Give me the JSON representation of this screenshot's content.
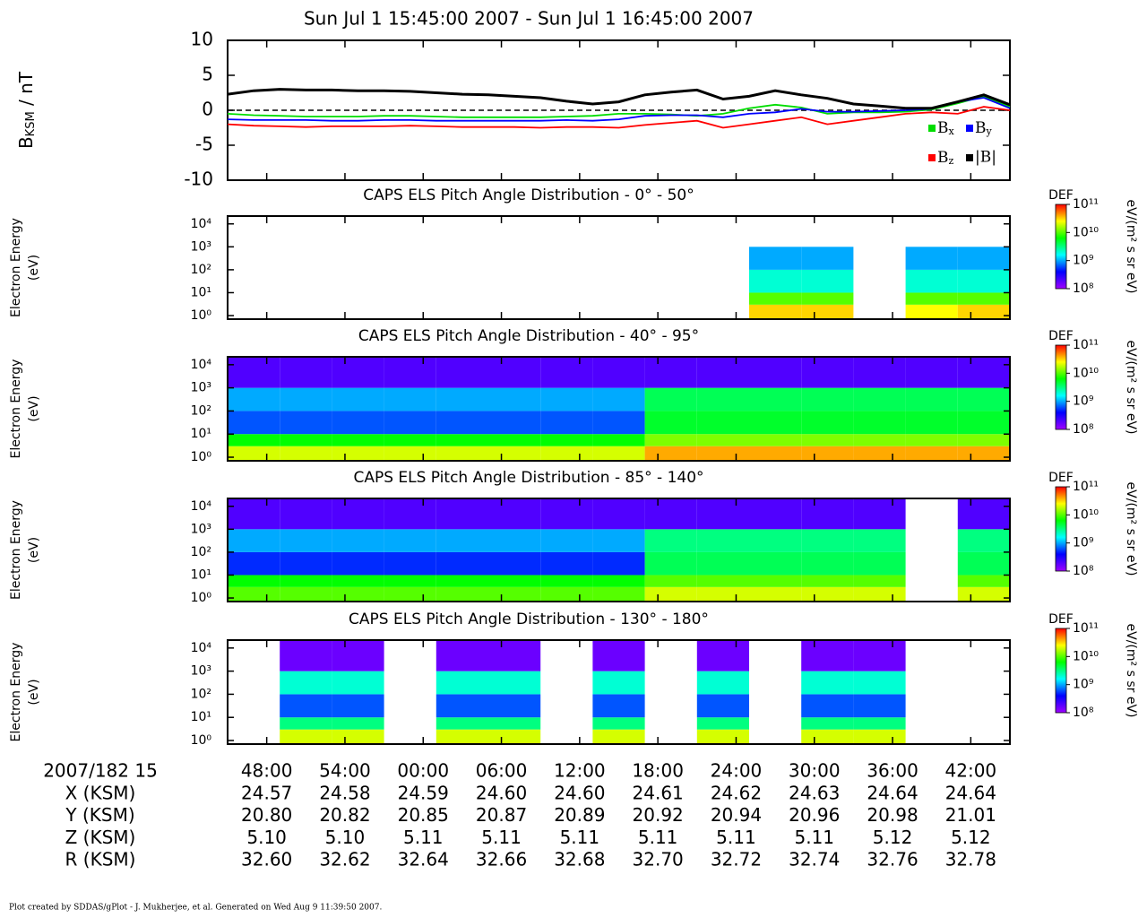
{
  "title": "Sun Jul 1 15:45:00 2007 - Sun Jul 1 16:45:00 2007",
  "footer": "Plot created by SDDAS/gPlot - J. Mukherjee, et al.  Generated on Wed Aug 9 11:39:50 2007.",
  "time_axis": {
    "xlim": [
      45,
      105
    ],
    "xticks": [
      {
        "value": 48,
        "label": "48:00"
      },
      {
        "value": 54,
        "label": "54:00"
      },
      {
        "value": 60,
        "label": "00:00"
      },
      {
        "value": 66,
        "label": "06:00"
      },
      {
        "value": 72,
        "label": "12:00"
      },
      {
        "value": 78,
        "label": "18:00"
      },
      {
        "value": 84,
        "label": "24:00"
      },
      {
        "value": 90,
        "label": "30:00"
      },
      {
        "value": 96,
        "label": "36:00"
      },
      {
        "value": 102,
        "label": "42:00"
      }
    ]
  },
  "ephemeris": {
    "time_label": "2007/182 15",
    "rows": [
      {
        "label": "X (KSM)",
        "values": [
          "24.57",
          "24.58",
          "24.59",
          "24.60",
          "24.60",
          "24.61",
          "24.62",
          "24.63",
          "24.64",
          "24.64"
        ]
      },
      {
        "label": "Y (KSM)",
        "values": [
          "20.80",
          "20.82",
          "20.85",
          "20.87",
          "20.89",
          "20.92",
          "20.94",
          "20.96",
          "20.98",
          "21.01"
        ]
      },
      {
        "label": "Z (KSM)",
        "values": [
          "5.10",
          "5.10",
          "5.11",
          "5.11",
          "5.11",
          "5.11",
          "5.11",
          "5.11",
          "5.12",
          "5.12"
        ]
      },
      {
        "label": "R (KSM)",
        "values": [
          "32.60",
          "32.62",
          "32.64",
          "32.66",
          "32.68",
          "32.70",
          "32.72",
          "32.74",
          "32.76",
          "32.78"
        ]
      }
    ]
  },
  "chart_data": [
    {
      "type": "line",
      "ylabel": "BKSM / nT",
      "ylim": [
        -10,
        10
      ],
      "yticks": [
        -10,
        -5,
        0,
        5,
        10
      ],
      "hline": 0,
      "legend": "lower right",
      "x": [
        45,
        47,
        49,
        51,
        53,
        55,
        57,
        59,
        61,
        63,
        65,
        67,
        69,
        71,
        73,
        75,
        77,
        79,
        81,
        83,
        85,
        87,
        89,
        91,
        93,
        95,
        97,
        99,
        101,
        103,
        105
      ],
      "series": [
        {
          "name": "Bx",
          "color": "#00dd00",
          "values": [
            -0.5,
            -0.7,
            -0.8,
            -0.9,
            -0.9,
            -0.9,
            -0.8,
            -0.8,
            -0.9,
            -1.0,
            -1.0,
            -1.0,
            -1.0,
            -0.9,
            -0.8,
            -0.5,
            -0.5,
            -0.6,
            -0.8,
            -0.5,
            0.3,
            0.8,
            0.4,
            -0.5,
            -0.3,
            -0.3,
            -0.2,
            0.1,
            1.0,
            2.0,
            0.5
          ]
        },
        {
          "name": "By",
          "color": "#0000ff",
          "values": [
            -1.3,
            -1.4,
            -1.4,
            -1.4,
            -1.5,
            -1.5,
            -1.4,
            -1.4,
            -1.5,
            -1.5,
            -1.5,
            -1.5,
            -1.5,
            -1.4,
            -1.5,
            -1.3,
            -0.8,
            -0.7,
            -0.7,
            -1.0,
            -0.5,
            -0.3,
            0.2,
            -0.2,
            -0.2,
            -0.1,
            0.0,
            0.2,
            1.2,
            1.8,
            0.3
          ]
        },
        {
          "name": "Bz",
          "color": "#ff0000",
          "values": [
            -2.0,
            -2.2,
            -2.3,
            -2.4,
            -2.3,
            -2.3,
            -2.3,
            -2.2,
            -2.3,
            -2.4,
            -2.4,
            -2.4,
            -2.5,
            -2.4,
            -2.4,
            -2.5,
            -2.1,
            -1.8,
            -1.5,
            -2.5,
            -2.0,
            -1.5,
            -1.0,
            -2.0,
            -1.5,
            -1.0,
            -0.5,
            -0.3,
            -0.5,
            0.5,
            0.0
          ]
        },
        {
          "name": "|B|",
          "color": "#000000",
          "values": [
            2.3,
            2.8,
            3.0,
            2.9,
            2.9,
            2.8,
            2.8,
            2.7,
            2.5,
            2.3,
            2.2,
            2.0,
            1.8,
            1.3,
            0.9,
            1.2,
            2.2,
            2.6,
            2.9,
            1.6,
            2.0,
            2.8,
            2.2,
            1.7,
            0.9,
            0.6,
            0.3,
            0.3,
            1.2,
            2.2,
            0.8
          ]
        }
      ]
    },
    {
      "type": "heatmap",
      "title": "CAPS ELS Pitch Angle Distribution - 0° - 50°",
      "ylabel": "Electron Energy",
      "yunits": "(eV)",
      "log_y": true,
      "ylim": [
        0.7,
        22000
      ],
      "yticks": [
        {
          "value": 1,
          "label": "10⁰"
        },
        {
          "value": 10,
          "label": "10¹"
        },
        {
          "value": 100,
          "label": "10²"
        },
        {
          "value": 1000,
          "label": "10³"
        },
        {
          "value": 10000,
          "label": "10⁴"
        }
      ],
      "time_bins": [
        45,
        49,
        53,
        57,
        61,
        65,
        69,
        73,
        77,
        81,
        85,
        89,
        93,
        97,
        101,
        105
      ],
      "energy_bins": [
        0.7,
        3,
        10,
        100,
        1000,
        22000
      ],
      "colorbar": {
        "label": "DEF",
        "units": "eV/(m² s sr eV)",
        "lim": [
          8,
          11
        ],
        "ticks": [
          {
            "value": 8,
            "label": "10⁸"
          },
          {
            "value": 9,
            "label": "10⁹"
          },
          {
            "value": 10,
            "label": "10¹⁰"
          },
          {
            "value": 11,
            "label": "10¹¹"
          }
        ]
      },
      "values": [
        [
          null,
          null,
          null,
          null,
          null,
          null,
          null,
          null,
          null,
          null,
          10.5,
          10.5,
          null,
          10.4,
          10.5
        ],
        [
          null,
          null,
          null,
          null,
          null,
          null,
          null,
          null,
          null,
          null,
          10.0,
          10.0,
          null,
          10.0,
          10.0
        ],
        [
          null,
          null,
          null,
          null,
          null,
          null,
          null,
          null,
          null,
          null,
          9.3,
          9.3,
          null,
          9.3,
          9.3
        ],
        [
          null,
          null,
          null,
          null,
          null,
          null,
          null,
          null,
          null,
          null,
          9.0,
          9.0,
          null,
          9.0,
          9.0
        ],
        [
          null,
          null,
          null,
          null,
          null,
          null,
          null,
          null,
          null,
          null,
          null,
          null,
          null,
          null,
          null
        ]
      ]
    },
    {
      "type": "heatmap",
      "title": "CAPS ELS Pitch Angle Distribution - 40° - 95°",
      "ylabel": "Electron Energy",
      "yunits": "(eV)",
      "log_y": true,
      "ylim": [
        0.7,
        22000
      ],
      "yticks": [
        {
          "value": 1,
          "label": "10⁰"
        },
        {
          "value": 10,
          "label": "10¹"
        },
        {
          "value": 100,
          "label": "10²"
        },
        {
          "value": 1000,
          "label": "10³"
        },
        {
          "value": 10000,
          "label": "10⁴"
        }
      ],
      "time_bins": [
        45,
        49,
        53,
        57,
        61,
        65,
        69,
        73,
        77,
        81,
        85,
        89,
        93,
        97,
        101,
        105
      ],
      "energy_bins": [
        0.7,
        3,
        10,
        100,
        1000,
        22000
      ],
      "colorbar": {
        "label": "DEF",
        "units": "eV/(m² s sr eV)",
        "lim": [
          8,
          11
        ],
        "ticks": [
          {
            "value": 8,
            "label": "10⁸"
          },
          {
            "value": 9,
            "label": "10⁹"
          },
          {
            "value": 10,
            "label": "10¹⁰"
          },
          {
            "value": 11,
            "label": "10¹¹"
          }
        ]
      },
      "values": [
        [
          10.3,
          10.3,
          10.3,
          10.3,
          10.3,
          10.3,
          10.3,
          10.3,
          10.6,
          10.6,
          10.6,
          10.6,
          10.6,
          10.6,
          10.6
        ],
        [
          9.8,
          9.8,
          9.8,
          9.8,
          9.8,
          9.8,
          9.8,
          9.8,
          10.1,
          10.1,
          10.1,
          10.1,
          10.1,
          10.1,
          10.1
        ],
        [
          8.8,
          8.8,
          8.8,
          8.8,
          8.8,
          8.8,
          8.8,
          8.8,
          9.7,
          9.7,
          9.7,
          9.7,
          9.7,
          9.7,
          9.7
        ],
        [
          9.0,
          9.0,
          9.0,
          9.0,
          9.0,
          9.0,
          9.0,
          9.0,
          9.6,
          9.6,
          9.6,
          9.6,
          9.6,
          9.6,
          9.6
        ],
        [
          8.3,
          8.3,
          8.3,
          8.3,
          8.3,
          8.3,
          8.3,
          8.3,
          8.3,
          8.3,
          8.3,
          8.3,
          8.3,
          8.3,
          8.3
        ]
      ]
    },
    {
      "type": "heatmap",
      "title": "CAPS ELS Pitch Angle Distribution - 85° - 140°",
      "ylabel": "Electron Energy",
      "yunits": "(eV)",
      "log_y": true,
      "ylim": [
        0.7,
        22000
      ],
      "yticks": [
        {
          "value": 1,
          "label": "10⁰"
        },
        {
          "value": 10,
          "label": "10¹"
        },
        {
          "value": 100,
          "label": "10²"
        },
        {
          "value": 1000,
          "label": "10³"
        },
        {
          "value": 10000,
          "label": "10⁴"
        }
      ],
      "time_bins": [
        45,
        49,
        53,
        57,
        61,
        65,
        69,
        73,
        77,
        81,
        85,
        89,
        93,
        97,
        101,
        105
      ],
      "energy_bins": [
        0.7,
        3,
        10,
        100,
        1000,
        22000
      ],
      "colorbar": {
        "label": "DEF",
        "units": "eV/(m² s sr eV)",
        "lim": [
          8,
          11
        ],
        "ticks": [
          {
            "value": 8,
            "label": "10⁸"
          },
          {
            "value": 9,
            "label": "10⁹"
          },
          {
            "value": 10,
            "label": "10¹⁰"
          },
          {
            "value": 11,
            "label": "10¹¹"
          }
        ]
      },
      "values": [
        [
          10.0,
          10.0,
          10.0,
          10.0,
          10.0,
          10.0,
          10.0,
          10.0,
          10.3,
          10.3,
          10.3,
          10.3,
          10.3,
          null,
          10.3
        ],
        [
          9.8,
          9.8,
          9.8,
          9.8,
          9.8,
          9.8,
          9.8,
          9.8,
          10.0,
          10.0,
          10.0,
          10.0,
          10.0,
          null,
          10.0
        ],
        [
          8.7,
          8.7,
          8.7,
          8.7,
          8.7,
          8.7,
          8.7,
          8.7,
          9.6,
          9.6,
          9.6,
          9.6,
          9.6,
          null,
          9.6
        ],
        [
          9.0,
          9.0,
          9.0,
          9.0,
          9.0,
          9.0,
          9.0,
          9.0,
          9.5,
          9.5,
          9.5,
          9.5,
          9.5,
          null,
          9.5
        ],
        [
          8.3,
          8.3,
          8.3,
          8.3,
          8.3,
          8.3,
          8.3,
          8.3,
          8.3,
          8.3,
          8.3,
          8.3,
          8.3,
          null,
          8.3
        ]
      ]
    },
    {
      "type": "heatmap",
      "title": "CAPS ELS Pitch Angle Distribution - 130° - 180°",
      "ylabel": "Electron Energy",
      "yunits": "(eV)",
      "log_y": true,
      "ylim": [
        0.7,
        22000
      ],
      "yticks": [
        {
          "value": 1,
          "label": "10⁰"
        },
        {
          "value": 10,
          "label": "10¹"
        },
        {
          "value": 100,
          "label": "10²"
        },
        {
          "value": 1000,
          "label": "10³"
        },
        {
          "value": 10000,
          "label": "10⁴"
        }
      ],
      "time_bins": [
        45,
        49,
        53,
        57,
        61,
        65,
        69,
        73,
        77,
        81,
        85,
        89,
        93,
        97,
        101,
        105
      ],
      "energy_bins": [
        0.7,
        3,
        10,
        100,
        1000,
        22000
      ],
      "colorbar": {
        "label": "DEF",
        "units": "eV/(m² s sr eV)",
        "lim": [
          8,
          11
        ],
        "ticks": [
          {
            "value": 8,
            "label": "10⁸"
          },
          {
            "value": 9,
            "label": "10⁹"
          },
          {
            "value": 10,
            "label": "10¹⁰"
          },
          {
            "value": 11,
            "label": "10¹¹"
          }
        ]
      },
      "values": [
        [
          null,
          10.3,
          10.3,
          null,
          10.3,
          10.3,
          null,
          10.3,
          null,
          10.3,
          null,
          10.3,
          10.3,
          null,
          null
        ],
        [
          null,
          9.5,
          9.5,
          null,
          9.5,
          9.5,
          null,
          9.5,
          null,
          9.5,
          null,
          9.5,
          9.5,
          null,
          null
        ],
        [
          null,
          8.8,
          8.8,
          null,
          8.8,
          8.8,
          null,
          8.8,
          null,
          8.8,
          null,
          8.8,
          8.8,
          null,
          null
        ],
        [
          null,
          9.3,
          9.3,
          null,
          9.3,
          9.3,
          null,
          9.3,
          null,
          9.3,
          null,
          9.3,
          9.3,
          null,
          null
        ],
        [
          null,
          8.2,
          8.2,
          null,
          8.2,
          8.2,
          null,
          8.2,
          null,
          8.2,
          null,
          8.2,
          8.2,
          null,
          null
        ]
      ]
    }
  ]
}
